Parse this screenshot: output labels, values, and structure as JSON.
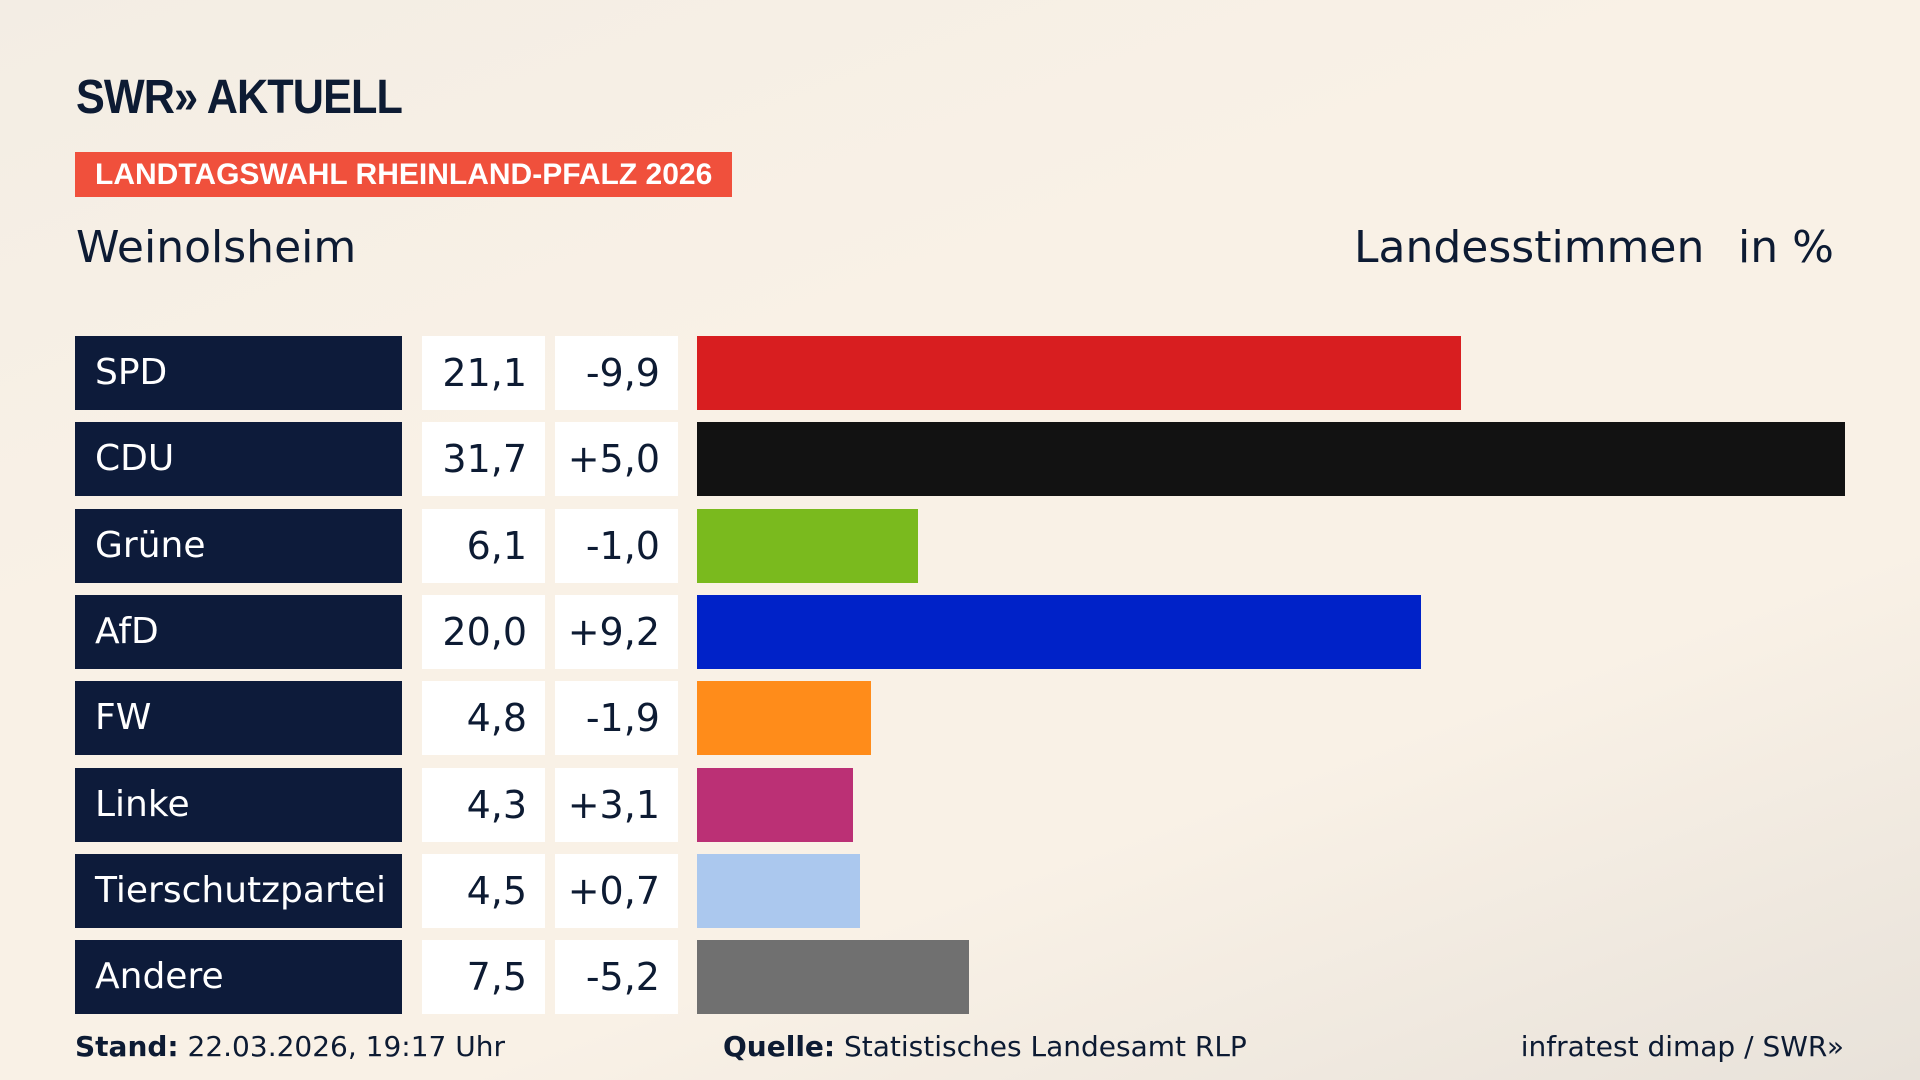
{
  "logo": "SWR» AKTUELL",
  "banner": "LANDTAGSWAHL RHEINLAND-PFALZ 2026",
  "place": "Weinolsheim",
  "header_label": "Landesstimmen",
  "header_unit": "in %",
  "chart_data": {
    "type": "bar",
    "orientation": "horizontal",
    "categories": [
      "SPD",
      "CDU",
      "Grüne",
      "AfD",
      "FW",
      "Linke",
      "Tierschutzpartei",
      "Andere"
    ],
    "values": [
      21.1,
      31.7,
      6.1,
      20.0,
      4.8,
      4.3,
      4.5,
      7.5
    ],
    "value_labels": [
      "21,1",
      "31,7",
      "6,1",
      "20,0",
      "4,8",
      "4,3",
      "4,5",
      "7,5"
    ],
    "diff_labels": [
      "-9,9",
      "+5,0",
      "-1,0",
      "+9,2",
      "-1,9",
      "+3,1",
      "+0,7",
      "-5,2"
    ],
    "colors": [
      "#d81e20",
      "#121212",
      "#7aba1e",
      "#0022c8",
      "#ff8c1a",
      "#bb3075",
      "#abc8ee",
      "#707070"
    ]
  },
  "footer": {
    "stand_label": "Stand:",
    "stand_value": "22.03.2026, 19:17 Uhr",
    "source_label": "Quelle:",
    "source_value": "Statistisches Landesamt RLP",
    "credit": "infratest dimap / SWR»"
  }
}
